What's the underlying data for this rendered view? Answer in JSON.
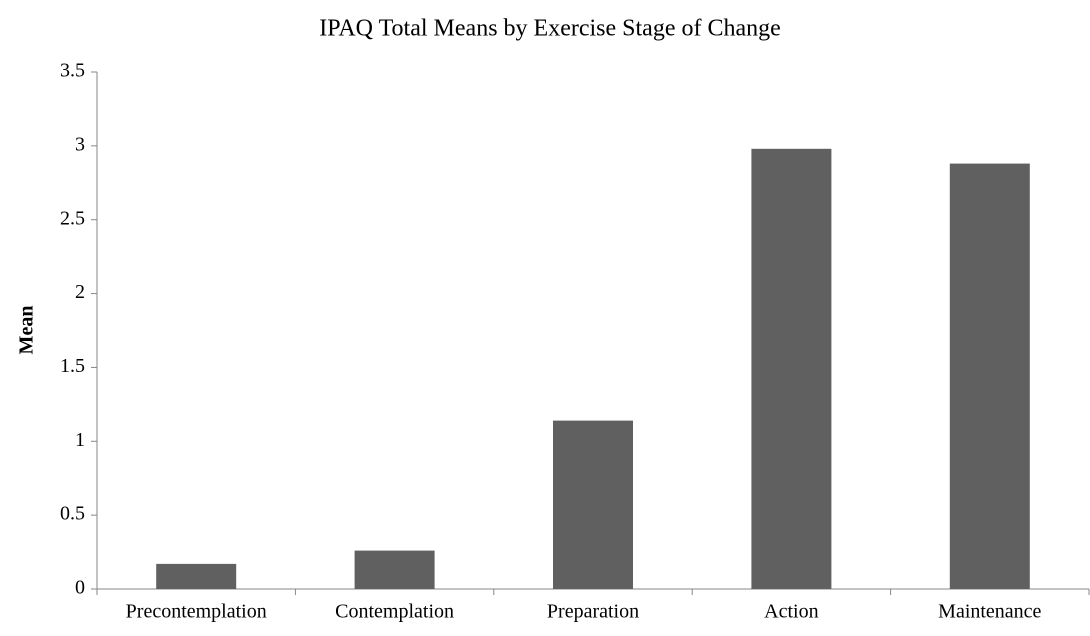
{
  "chart_data": {
    "type": "bar",
    "title": "IPAQ Total Means by Exercise Stage of Change",
    "y_label": "Mean",
    "categories": [
      "Precontemplation",
      "Contemplation",
      "Preparation",
      "Action",
      "Maintenance"
    ],
    "values": [
      0.17,
      0.26,
      1.14,
      2.98,
      2.88
    ],
    "color": "#606060",
    "ylim": [
      0,
      3.5
    ],
    "yticks": [
      0,
      0.5,
      1,
      1.5,
      2,
      2.5,
      3,
      3.5
    ],
    "grid": false
  }
}
